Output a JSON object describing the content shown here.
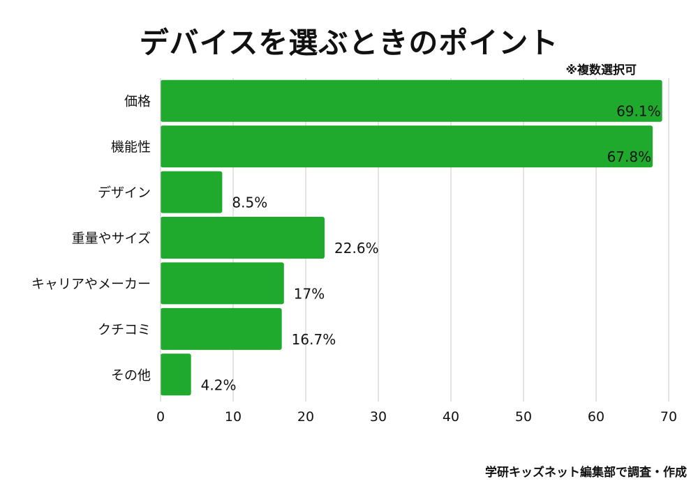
{
  "title": "デバイスを選ぶときのポイント",
  "note": "※複数選択可",
  "source": "学研キッズネット編集部で調査・作成",
  "chart_data": {
    "type": "bar",
    "orientation": "horizontal",
    "categories": [
      "価格",
      "機能性",
      "デザイン",
      "重量やサイズ",
      "キャリアやメーカー",
      "クチコミ",
      "その他"
    ],
    "values": [
      69.1,
      67.8,
      8.5,
      22.6,
      17,
      16.7,
      4.2
    ],
    "value_labels": [
      "69.1%",
      "67.8%",
      "8.5%",
      "22.6%",
      "17%",
      "16.7%",
      "4.2%"
    ],
    "xlim": [
      0,
      70
    ],
    "xticks": [
      0,
      10,
      20,
      30,
      40,
      50,
      60,
      70
    ],
    "grid": "vertical",
    "bar_color": "#1faa2e"
  }
}
